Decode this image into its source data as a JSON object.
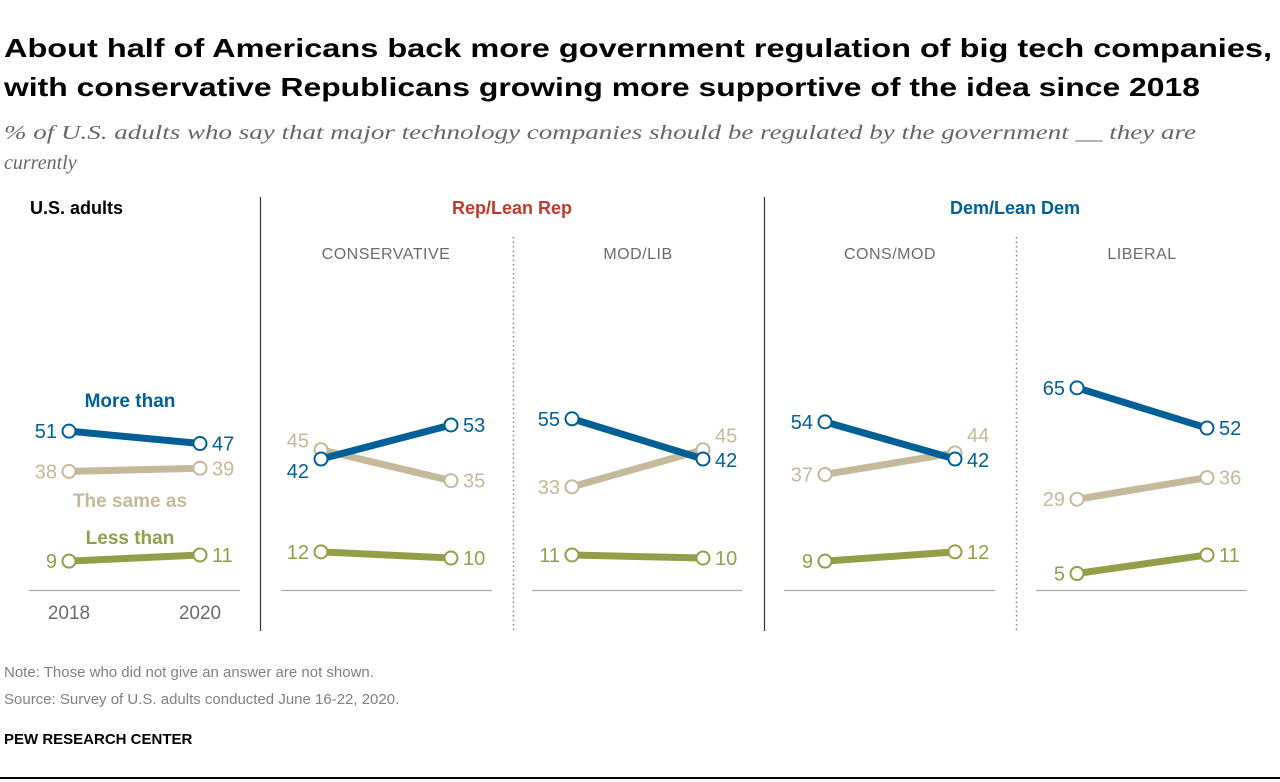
{
  "title_lines": [
    "About half of Americans back more government regulation of big tech companies,",
    "with conservative Republicans growing more supportive of the idea since 2018"
  ],
  "subtitle_lines": [
    "% of U.S. adults who say that major technology companies should be regulated by the government __  they are",
    "currently"
  ],
  "groups": {
    "us": {
      "label": "U.S. adults",
      "color": "#000000"
    },
    "rep": {
      "label": "Rep/Lean Rep",
      "color": "#c0392b"
    },
    "dem": {
      "label": "Dem/Lean Dem",
      "color": "#005f94"
    }
  },
  "series_labels": [
    "More than",
    "The same as",
    "Less than"
  ],
  "years": [
    "2018",
    "2020"
  ],
  "colors": {
    "more": "#005f94",
    "same": "#c4b99a",
    "less": "#949e48"
  },
  "chart_data": {
    "type": "line",
    "x": [
      "2018",
      "2020"
    ],
    "ylim": [
      0,
      70
    ],
    "grid": false,
    "panels": [
      {
        "name": "",
        "series": [
          {
            "name": "More than",
            "values": [
              51,
              47
            ]
          },
          {
            "name": "The same as",
            "values": [
              38,
              39
            ]
          },
          {
            "name": "Less than",
            "values": [
              9,
              11
            ]
          }
        ]
      },
      {
        "name": "CONSERVATIVE",
        "series": [
          {
            "name": "More than",
            "values": [
              42,
              53
            ]
          },
          {
            "name": "The same as",
            "values": [
              45,
              35
            ]
          },
          {
            "name": "Less than",
            "values": [
              12,
              10
            ]
          }
        ]
      },
      {
        "name": "MOD/LIB",
        "series": [
          {
            "name": "More than",
            "values": [
              55,
              42
            ]
          },
          {
            "name": "The same as",
            "values": [
              33,
              45
            ]
          },
          {
            "name": "Less than",
            "values": [
              11,
              10
            ]
          }
        ]
      },
      {
        "name": "CONS/MOD",
        "series": [
          {
            "name": "More than",
            "values": [
              54,
              42
            ]
          },
          {
            "name": "The same as",
            "values": [
              37,
              44
            ]
          },
          {
            "name": "Less than",
            "values": [
              9,
              12
            ]
          }
        ]
      },
      {
        "name": "LIBERAL",
        "series": [
          {
            "name": "More than",
            "values": [
              65,
              52
            ]
          },
          {
            "name": "The same as",
            "values": [
              29,
              36
            ]
          },
          {
            "name": "Less than",
            "values": [
              5,
              11
            ]
          }
        ]
      }
    ]
  },
  "note": "Note: Those who did not give an answer are not shown.",
  "source": "Source: Survey of U.S. adults conducted June 16-22, 2020.",
  "brand": "PEW RESEARCH CENTER"
}
